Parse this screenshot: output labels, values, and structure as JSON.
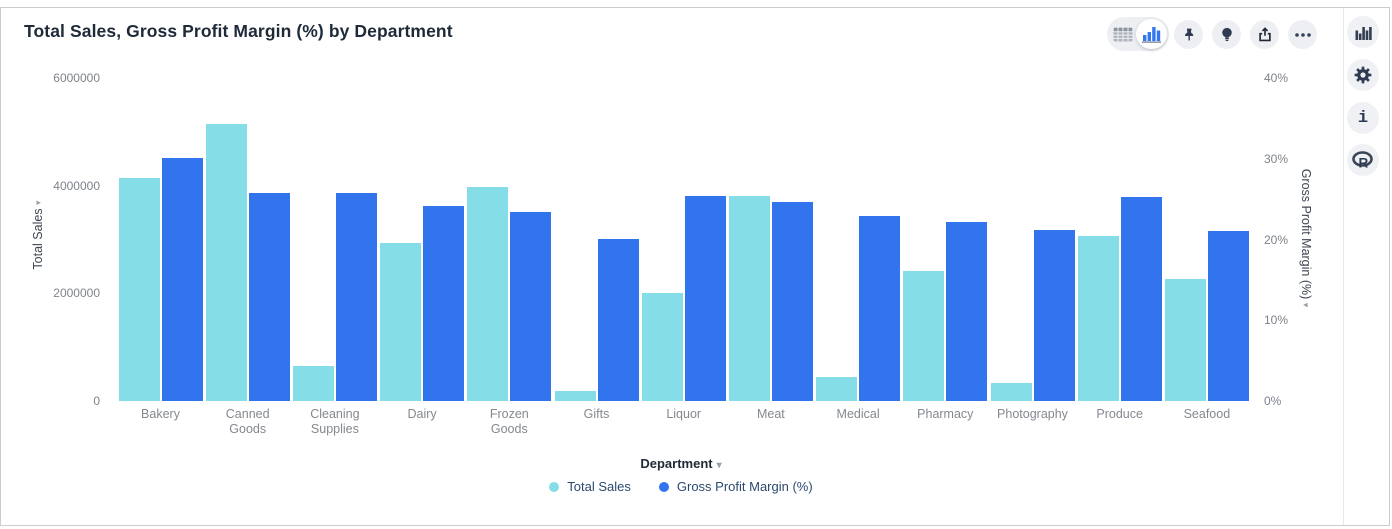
{
  "header": {
    "title": "Total Sales, Gross Profit Margin (%) by Department"
  },
  "toolbar": {
    "view_toggle": {
      "selected": "chart",
      "options": [
        "table-view",
        "chart-view"
      ]
    },
    "buttons": [
      "pin",
      "lightbulb",
      "export",
      "more-options"
    ]
  },
  "sidebar": {
    "buttons": [
      "chart-type",
      "settings",
      "info",
      "r-language"
    ]
  },
  "icons": {
    "dropdown_arrow": "▾"
  },
  "colors": {
    "series_cyan": "#85dee7",
    "series_blue": "#3274ed",
    "icon_navy": "#2e3b52",
    "circle_bg": "#edeff3",
    "tick_gray": "#7e838b",
    "legend_navy": "#2b4a70"
  },
  "chart_data": {
    "type": "bar",
    "title": "Total Sales, Gross Profit Margin (%) by Department",
    "categories": [
      "Bakery",
      "Canned Goods",
      "Cleaning Supplies",
      "Dairy",
      "Frozen Goods",
      "Gifts",
      "Liquor",
      "Meat",
      "Medical",
      "Pharmacy",
      "Photography",
      "Produce",
      "Seafood"
    ],
    "series": [
      {
        "name": "Total Sales",
        "axis": "left",
        "color": "#85dee7",
        "values": [
          4150000,
          5150000,
          650000,
          2930000,
          3980000,
          190000,
          2000000,
          3800000,
          440000,
          2420000,
          340000,
          3070000,
          2270000
        ]
      },
      {
        "name": "Gross Profit Margin (%)",
        "axis": "right",
        "color": "#3274ed",
        "values": [
          30.1,
          25.8,
          25.7,
          24.1,
          23.4,
          20.1,
          25.4,
          24.7,
          22.9,
          22.2,
          21.2,
          25.3,
          21.0
        ]
      }
    ],
    "left_axis": {
      "label": "Total Sales",
      "ticks": [
        "0",
        "2000000",
        "4000000",
        "6000000"
      ],
      "lim": [
        0,
        6000000
      ]
    },
    "right_axis": {
      "label": "Gross Profit Margin (%)",
      "ticks": [
        "0%",
        "10%",
        "20%",
        "30%",
        "40%"
      ],
      "lim": [
        0,
        40
      ]
    },
    "xlabel": "Department",
    "legend": [
      "Total Sales",
      "Gross Profit Margin (%)"
    ],
    "legend_position": "bottom",
    "grid": false
  }
}
